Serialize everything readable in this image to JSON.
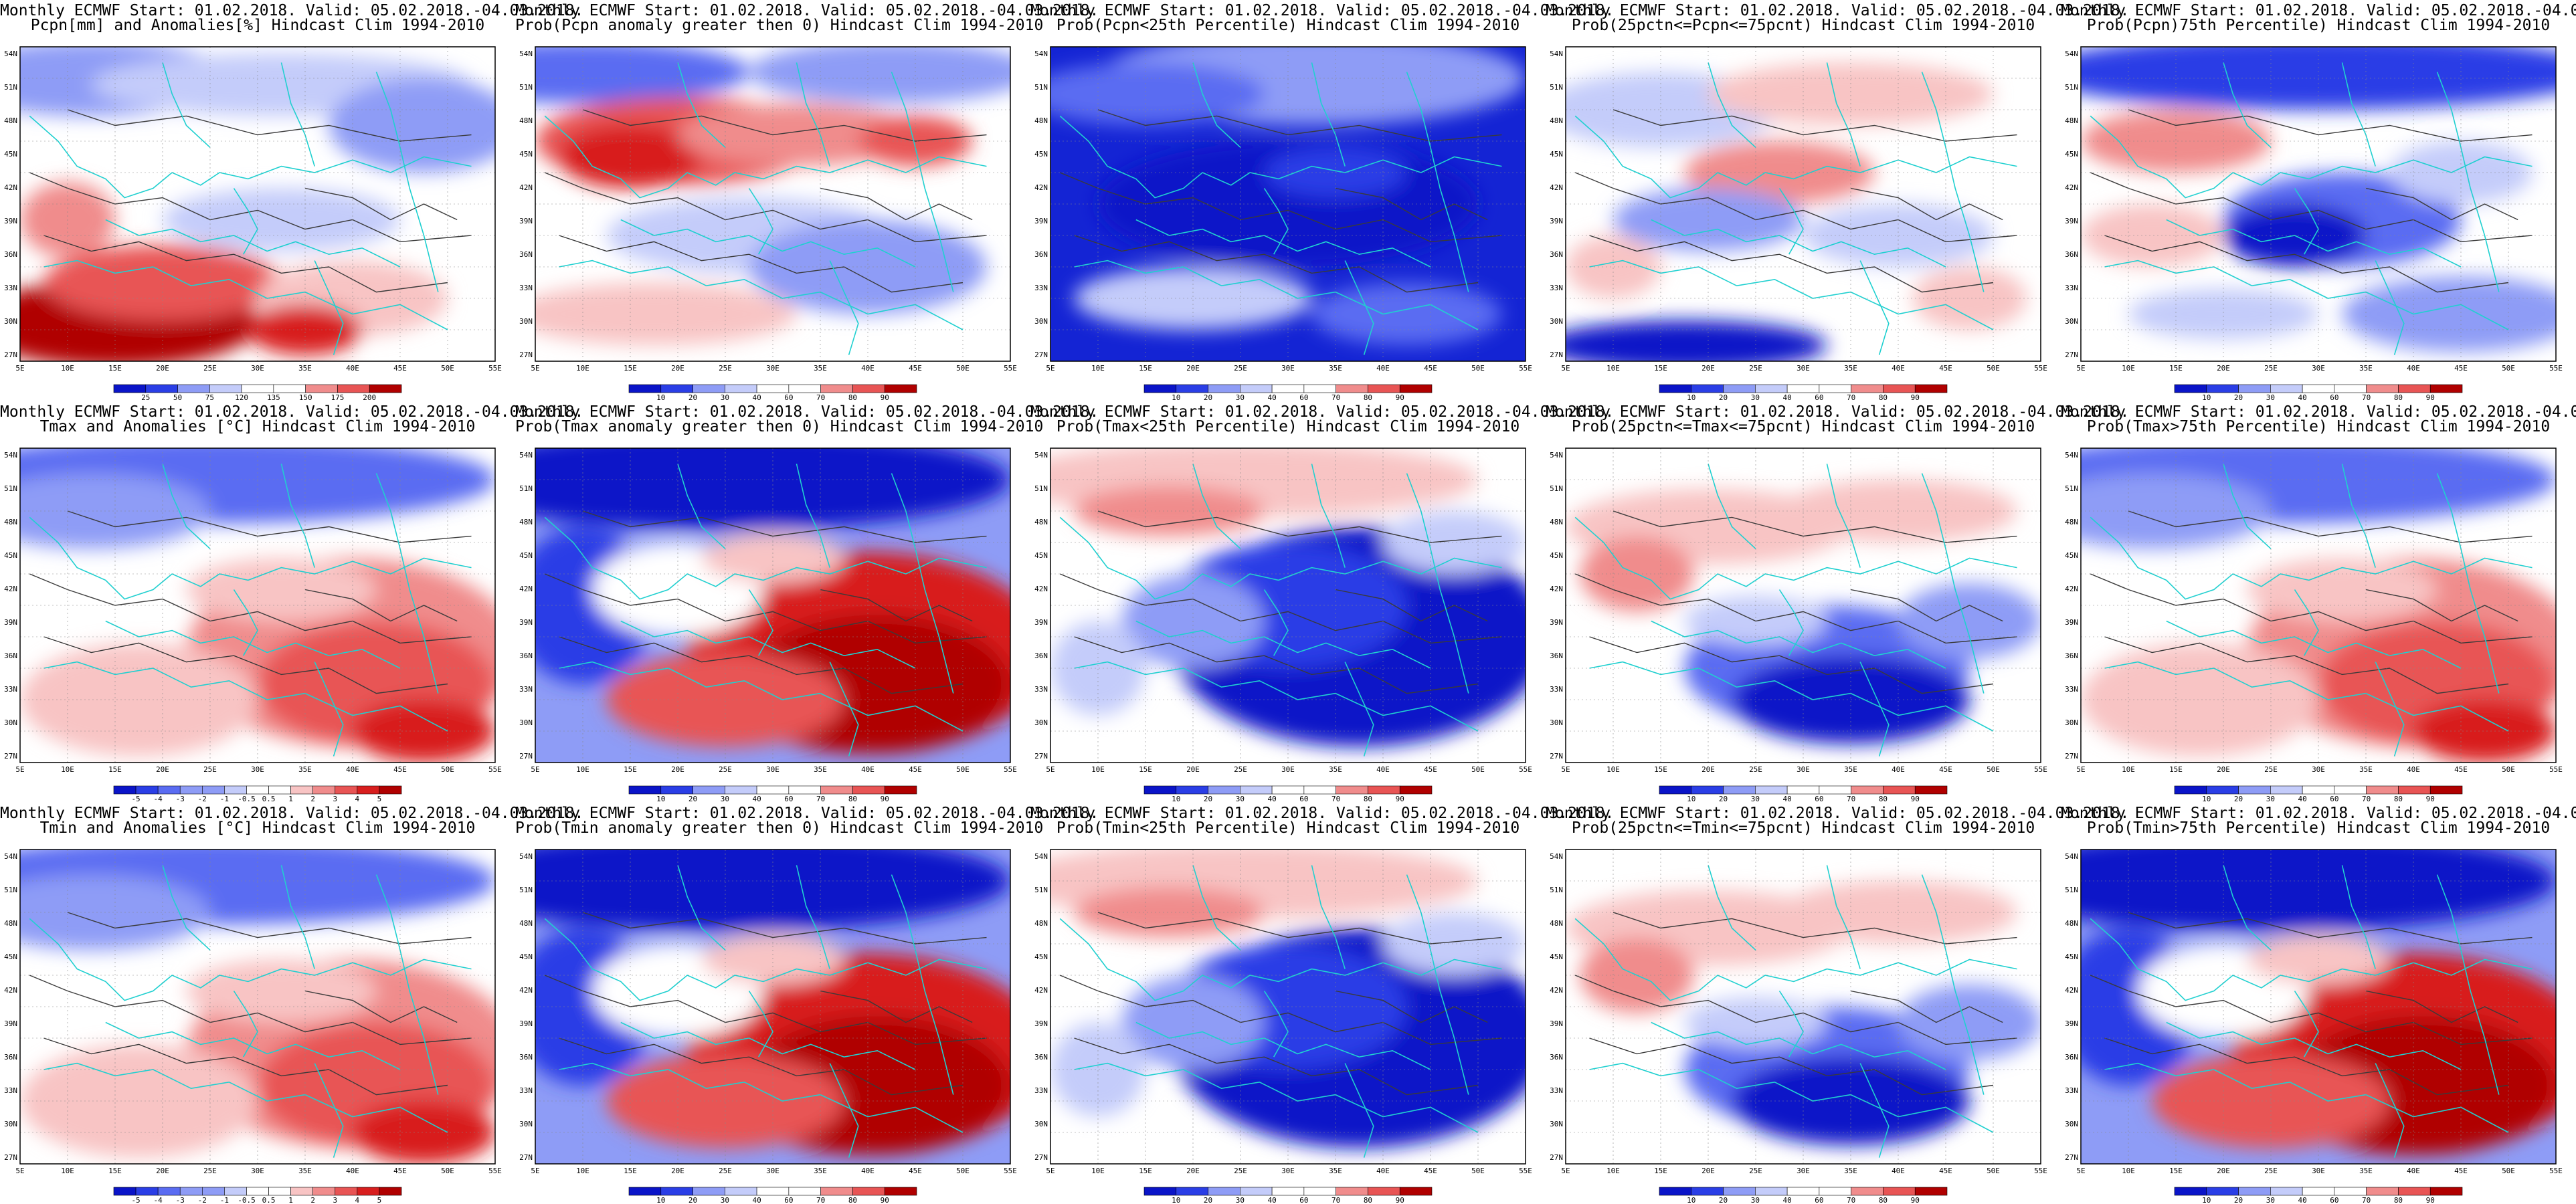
{
  "header_prefix": "Monthly ECMWF Start: 01.02.2018. Valid: 05.02.2018.-04.03.2018.",
  "lat_labels": [
    "54N",
    "51N",
    "48N",
    "45N",
    "42N",
    "39N",
    "36N",
    "33N",
    "30N",
    "27N"
  ],
  "lon_labels": [
    "5E",
    "10E",
    "15E",
    "20E",
    "25E",
    "30E",
    "35E",
    "40E",
    "45E",
    "50E",
    "55E"
  ],
  "colors": {
    "border": "#20d0d0",
    "contour": "#3a3a3a",
    "blue_scale": [
      "#0a14c8",
      "#2a3ee6",
      "#5a6cf2",
      "#8e9cf6",
      "#c4ccfa",
      "#ffffff"
    ],
    "red_scale": [
      "#ffffff",
      "#f8c4c4",
      "#f08c8c",
      "#e85454",
      "#d81e1e",
      "#b00000"
    ]
  },
  "colorbars": {
    "precip": [
      "25",
      "50",
      "75",
      "120",
      "135",
      "150",
      "175",
      "200"
    ],
    "prob": [
      "10",
      "20",
      "30",
      "40",
      "60",
      "70",
      "80",
      "90"
    ],
    "anom": [
      "-5",
      "-4",
      "-3",
      "-2",
      "-1",
      "-0.5",
      "0.5",
      "1",
      "2",
      "3",
      "4",
      "5"
    ]
  },
  "panels": [
    {
      "id": "r1c1",
      "name": "panel-precip-anomalies",
      "line2": "Pcpn[mm] and Anomalies[%] Hindcast Clim 1994-2010",
      "cbar": "precip",
      "theme": "mixed-red-south"
    },
    {
      "id": "r1c2",
      "name": "panel-prob-precip-gt0",
      "line2": "Prob(Pcpn anomaly greater then 0) Hindcast Clim 1994-2010",
      "cbar": "prob",
      "theme": "red-center"
    },
    {
      "id": "r1c3",
      "name": "panel-prob-precip-lt25",
      "line2": "Prob(Pcpn<25th Percentile) Hindcast Clim 1994-2010",
      "cbar": "prob",
      "theme": "deep-blue"
    },
    {
      "id": "r1c4",
      "name": "panel-prob-precip-25-75",
      "line2": "Prob(25pctn<=Pcpn<=75pcnt) Hindcast Clim 1994-2010",
      "cbar": "prob",
      "theme": "pale-mixed"
    },
    {
      "id": "r1c5",
      "name": "panel-prob-precip-gt75",
      "line2": "Prob(Pcpn)75th Percentile) Hindcast Clim 1994-2010",
      "cbar": "prob",
      "theme": "blue-mixed"
    },
    {
      "id": "r2c1",
      "name": "panel-tmax-anomalies",
      "line2": "Tmax and Anomalies [°C] Hindcast Clim 1994-2010",
      "cbar": "anom",
      "theme": "blue-north-red-se"
    },
    {
      "id": "r2c2",
      "name": "panel-prob-tmax-gt0",
      "line2": "Prob(Tmax anomaly greater then 0) Hindcast Clim 1994-2010",
      "cbar": "prob",
      "theme": "blue-north-red-se-strong"
    },
    {
      "id": "r2c3",
      "name": "panel-prob-tmax-lt25",
      "line2": "Prob(Tmax<25th Percentile) Hindcast Clim 1994-2010",
      "cbar": "prob",
      "theme": "red-north-blue-se"
    },
    {
      "id": "r2c4",
      "name": "panel-prob-tmax-25-75",
      "line2": "Prob(25pctn<=Tmax<=75pcnt) Hindcast Clim 1994-2010",
      "cbar": "prob",
      "theme": "pale-blue-se"
    },
    {
      "id": "r2c5",
      "name": "panel-prob-tmax-gt75",
      "line2": "Prob(Tmax>75th Percentile) Hindcast Clim 1994-2010",
      "cbar": "prob",
      "theme": "blue-north-red-se"
    },
    {
      "id": "r3c1",
      "name": "panel-tmin-anomalies",
      "line2": "Tmin and Anomalies [°C] Hindcast Clim 1994-2010",
      "cbar": "anom",
      "theme": "blue-north-red-se"
    },
    {
      "id": "r3c2",
      "name": "panel-prob-tmin-gt0",
      "line2": "Prob(Tmin anomaly greater then 0) Hindcast Clim 1994-2010",
      "cbar": "prob",
      "theme": "blue-north-red-se-strong"
    },
    {
      "id": "r3c3",
      "name": "panel-prob-tmin-lt25",
      "line2": "Prob(Tmin<25th Percentile) Hindcast Clim 1994-2010",
      "cbar": "prob",
      "theme": "red-north-blue-se"
    },
    {
      "id": "r3c4",
      "name": "panel-prob-tmin-25-75",
      "line2": "Prob(25pctn<=Tmin<=75pcnt) Hindcast Clim 1994-2010",
      "cbar": "prob",
      "theme": "pale-blue-se"
    },
    {
      "id": "r3c5",
      "name": "panel-prob-tmin-gt75",
      "line2": "Prob(Tmin>75th Percentile) Hindcast Clim 1994-2010",
      "cbar": "prob",
      "theme": "blue-north-red-se-strong"
    }
  ]
}
